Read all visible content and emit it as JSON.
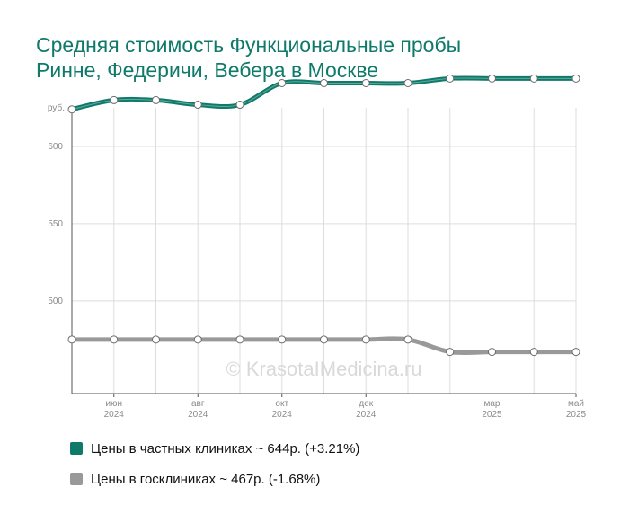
{
  "title_line1": "Средняя стоимость Функциональные пробы",
  "title_line2": "Ринне, Федеричи, Вебера в Москве",
  "watermark": "© KrasotaIMedicina.ru",
  "colors": {
    "private": "#0f7a6a",
    "public": "#999999",
    "title": "#0f7a6a"
  },
  "chart_data": {
    "type": "line",
    "title": "Средняя стоимость Функциональные пробы Ринне, Федеричи, Вебера в Москве",
    "y_unit": "руб.",
    "yticks": [
      "600",
      "550",
      "500"
    ],
    "ylim": [
      440,
      625
    ],
    "x": [
      "2024-05",
      "2024-06",
      "2024-07",
      "2024-08",
      "2024-09",
      "2024-10",
      "2024-11",
      "2024-12",
      "2025-01",
      "2025-02",
      "2025-03",
      "2025-04",
      "2025-05"
    ],
    "xticks": [
      {
        "month": "июн",
        "year": "2024"
      },
      {
        "month": "авг",
        "year": "2024"
      },
      {
        "month": "окт",
        "year": "2024"
      },
      {
        "month": "дек",
        "year": "2024"
      },
      {
        "month": "мар",
        "year": "2025"
      },
      {
        "month": "май",
        "year": "2025"
      }
    ],
    "grid": true,
    "series": [
      {
        "name": "Цены в частных клиниках",
        "color": "#0f7a6a",
        "values": [
          624,
          630,
          630,
          627,
          627,
          641,
          641,
          641,
          641,
          644,
          644,
          644,
          644
        ]
      },
      {
        "name": "Цены в госклиниках",
        "color": "#999999",
        "values": [
          475,
          475,
          475,
          475,
          475,
          475,
          475,
          475,
          475,
          467,
          467,
          467,
          467
        ]
      }
    ],
    "legend": [
      "Цены в частных клиниках ~ 644р. (+3.21%)",
      "Цены в госклиниках ~ 467р. (-1.68%)"
    ]
  }
}
